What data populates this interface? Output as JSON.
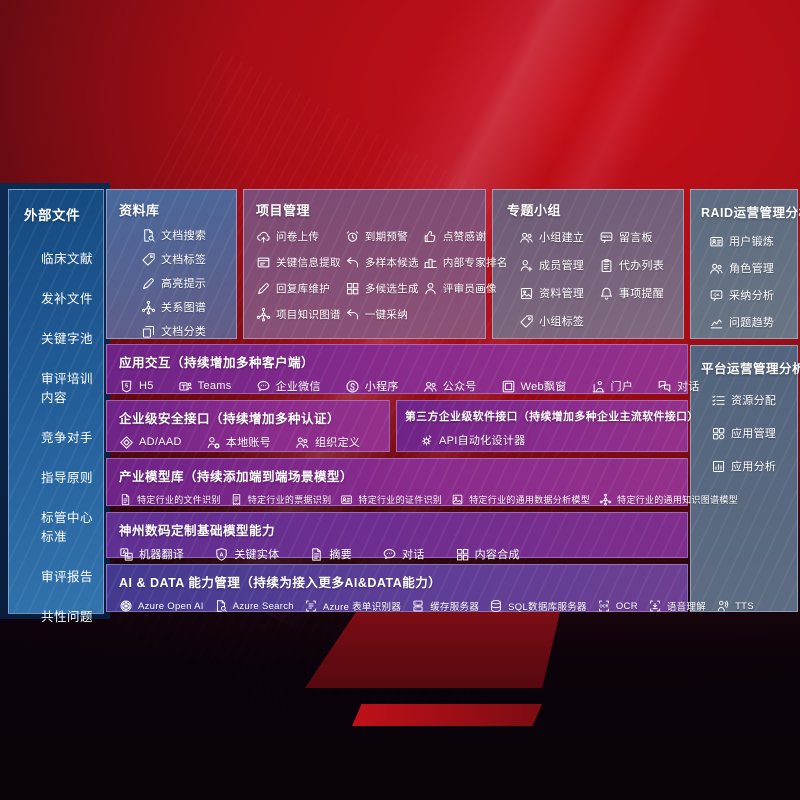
{
  "colors": {
    "background_red": "#b50e17",
    "sidebar_blue": "#2c6aa6",
    "row_purple": "#8a2c8d",
    "row_indigo": "#4a3a92",
    "panel_gray": "#5c6b80"
  },
  "left_sidebar": {
    "title": "外部文件",
    "items": [
      "临床文献",
      "发补文件",
      "关键字池",
      "审评培训内容",
      "竞争对手",
      "指导原则",
      "标管中心标准",
      "审评报告",
      "共性问题"
    ]
  },
  "top_panels": {
    "ziliao": {
      "title": "资料库",
      "items": [
        {
          "icon": "doc-search",
          "label": "文档搜索"
        },
        {
          "icon": "tag",
          "label": "文档标签"
        },
        {
          "icon": "pen",
          "label": "高亮提示"
        },
        {
          "icon": "graph",
          "label": "关系图谱"
        },
        {
          "icon": "docs",
          "label": "文档分类"
        }
      ]
    },
    "xiangmu": {
      "title": "项目管理",
      "items": [
        {
          "icon": "cloud-up",
          "label": "问卷上传"
        },
        {
          "icon": "alarm",
          "label": "到期预警"
        },
        {
          "icon": "thumb",
          "label": "点赞感谢"
        },
        {
          "icon": "extract",
          "label": "关键信息提取"
        },
        {
          "icon": "reply",
          "label": "多样本候选"
        },
        {
          "icon": "rank",
          "label": "内部专家排名"
        },
        {
          "icon": "pen",
          "label": "回复库维护"
        },
        {
          "icon": "grid4",
          "label": "多候选生成"
        },
        {
          "icon": "person",
          "label": "评审员画像"
        },
        {
          "icon": "graph",
          "label": "项目知识图谱"
        },
        {
          "icon": "reply",
          "label": "一键采纳"
        }
      ]
    },
    "zhuanti": {
      "title": "专题小组",
      "items": [
        {
          "icon": "people",
          "label": "小组建立"
        },
        {
          "icon": "bbs",
          "label": "留言板"
        },
        {
          "icon": "person-add",
          "label": "成员管理"
        },
        {
          "icon": "clipboard",
          "label": "代办列表"
        },
        {
          "icon": "image-box",
          "label": "资料管理"
        },
        {
          "icon": "bell",
          "label": "事项提醒"
        },
        {
          "icon": "tag",
          "label": "小组标签"
        }
      ]
    }
  },
  "right_panels": {
    "raid": {
      "title": "RAID运营管理分析",
      "items": [
        {
          "icon": "id-card",
          "label": "用户锻炼"
        },
        {
          "icon": "people",
          "label": "角色管理"
        },
        {
          "icon": "chat-qa",
          "label": "采纳分析"
        },
        {
          "icon": "trend",
          "label": "问题趋势"
        }
      ]
    },
    "platform": {
      "title": "平台运营管理分析",
      "items": [
        {
          "icon": "list",
          "label": "资源分配"
        },
        {
          "icon": "apps",
          "label": "应用管理"
        },
        {
          "icon": "chart-box",
          "label": "应用分析"
        }
      ]
    }
  },
  "rows": {
    "interaction": {
      "title": "应用交互（持续增加多种客户端）",
      "items": [
        {
          "icon": "h5",
          "label": "H5"
        },
        {
          "icon": "teams",
          "label": "Teams"
        },
        {
          "icon": "chat",
          "label": "企业微信"
        },
        {
          "icon": "mini",
          "label": "小程序"
        },
        {
          "icon": "people",
          "label": "公众号"
        },
        {
          "icon": "browser",
          "label": "Web飘窗"
        },
        {
          "icon": "portal",
          "label": "门户"
        },
        {
          "icon": "dialog",
          "label": "对话"
        }
      ]
    },
    "security": {
      "title": "企业级安全接口（持续增加多种认证）",
      "items": [
        {
          "icon": "diamond",
          "label": "AD/AAD"
        },
        {
          "icon": "person-gear",
          "label": "本地账号"
        },
        {
          "icon": "org",
          "label": "组织定义"
        }
      ]
    },
    "thirdparty": {
      "title": "第三方企业级软件接口（持续增加多种企业主流软件接口）",
      "items": [
        {
          "icon": "gear",
          "label": "API自动化设计器"
        }
      ]
    },
    "industry": {
      "title": "产业模型库（持续添加端到端场景模型）",
      "items": [
        {
          "icon": "doc",
          "label": "特定行业的文件识别"
        },
        {
          "icon": "receipt",
          "label": "特定行业的票据识别"
        },
        {
          "icon": "id-card",
          "label": "特定行业的证件识别"
        },
        {
          "icon": "image-box",
          "label": "特定行业的通用数据分析模型"
        },
        {
          "icon": "graph",
          "label": "特定行业的通用知识图谱模型"
        }
      ]
    },
    "foundation": {
      "title": "神州数码定制基础模型能力",
      "items": [
        {
          "icon": "translate",
          "label": "机器翻译"
        },
        {
          "icon": "shield-a",
          "label": "关键实体"
        },
        {
          "icon": "doc",
          "label": "摘要"
        },
        {
          "icon": "chat",
          "label": "对话"
        },
        {
          "icon": "grid4",
          "label": "内容合成"
        }
      ]
    },
    "aidata": {
      "title": "AI & DATA 能力管理（持续为接入更多AI&DATA能力）",
      "items": [
        {
          "icon": "openai",
          "label": "Azure Open AI"
        },
        {
          "icon": "doc-search",
          "label": "Azure Search"
        },
        {
          "icon": "form",
          "label": "Azure 表单识别器"
        },
        {
          "icon": "server",
          "label": "缓存服务器"
        },
        {
          "icon": "database",
          "label": "SQL数据库服务器"
        },
        {
          "icon": "ocr",
          "label": "OCR"
        },
        {
          "icon": "voice",
          "label": "语音理解"
        },
        {
          "icon": "tts",
          "label": "TTS"
        }
      ]
    }
  }
}
